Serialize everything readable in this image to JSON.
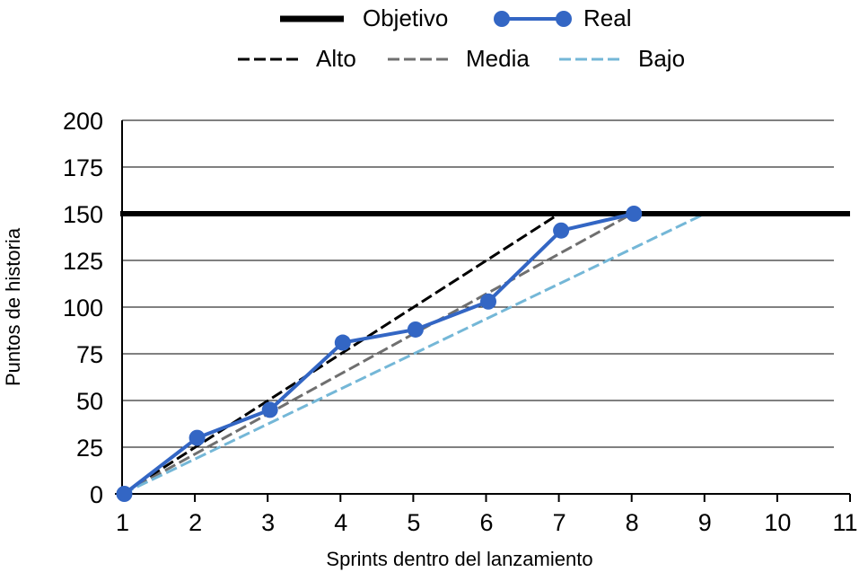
{
  "chart_data": {
    "type": "line",
    "xlabel": "Sprints dentro del lanzamiento",
    "ylabel": "Puntos de historia",
    "xlim": [
      1,
      11
    ],
    "ylim": [
      0,
      200
    ],
    "x_ticks": [
      "1",
      "2",
      "3",
      "4",
      "5",
      "6",
      "7",
      "8",
      "9",
      "10",
      "11"
    ],
    "y_ticks": [
      "0",
      "25",
      "50",
      "75",
      "100",
      "125",
      "150",
      "175",
      "200"
    ],
    "grid": "horizontal",
    "legend_position": "top",
    "target": {
      "name": "Objetivo",
      "value": 150,
      "x": [
        1,
        11
      ],
      "color": "#000000"
    },
    "series": [
      {
        "name": "Real",
        "style": "line-markers",
        "color": "#3366c4",
        "x": [
          1,
          2,
          3,
          4,
          5,
          6,
          7,
          8
        ],
        "y": [
          0,
          30,
          45,
          81,
          88,
          103,
          141,
          150
        ]
      },
      {
        "name": "Alto",
        "style": "dashed",
        "color": "#000000",
        "x": [
          1,
          7
        ],
        "y": [
          0,
          150
        ]
      },
      {
        "name": "Media",
        "style": "dashed",
        "color": "#6f6f6f",
        "x": [
          1,
          8
        ],
        "y": [
          0,
          150
        ]
      },
      {
        "name": "Bajo",
        "style": "dashed",
        "color": "#74b7d7",
        "x": [
          1,
          9
        ],
        "y": [
          0,
          150
        ]
      }
    ]
  }
}
